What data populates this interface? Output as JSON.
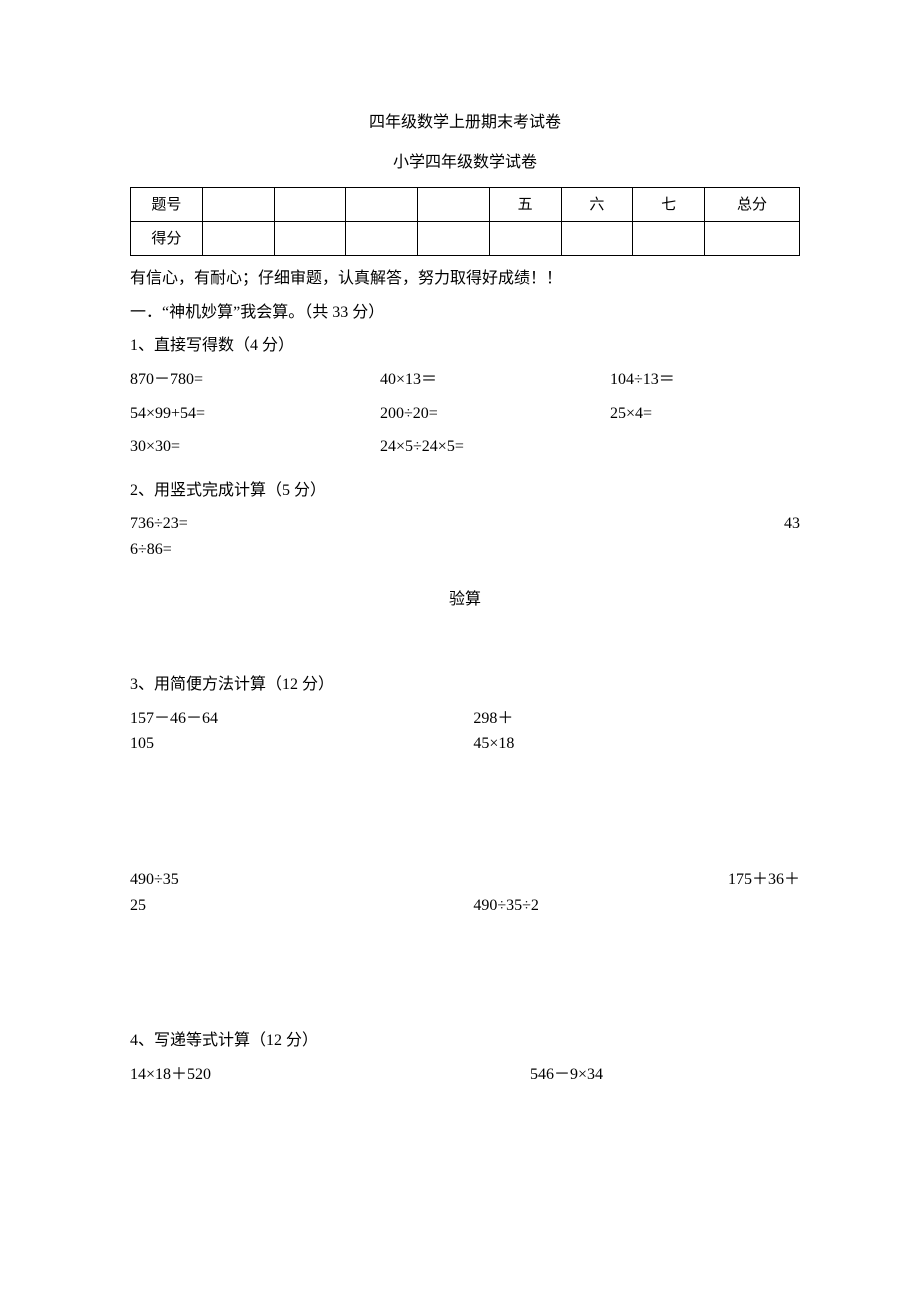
{
  "title_main": "四年级数学上册期末考试卷",
  "title_sub": "小学四年级数学试卷",
  "score_table": {
    "row1_label": "题号",
    "row2_label": "得分",
    "cols": [
      "",
      "",
      "",
      "",
      "五",
      "六",
      "七",
      "总分"
    ]
  },
  "encourage": "有信心，有耐心；仔细审题，认真解答，努力取得好成绩！！",
  "section1": "一．“神机妙算”我会算。（共 33 分）",
  "q1_title": "1、直接写得数（4 分）",
  "q1": {
    "r1a": "870－780=",
    "r1b": "40×13＝",
    "r1c": "104÷13＝",
    "r2a": "54×99+54=",
    "r2b": "200÷20=",
    "r2c": "25×4=",
    "r3a": "30×30=",
    "r3b": "24×5÷24×5="
  },
  "q2_title": "2、用竖式完成计算（5 分）",
  "q2": {
    "a": "736÷23=",
    "b_right": "43",
    "b_cont": "6÷86="
  },
  "yanshuan": "验算",
  "q3_title": "3、用简便方法计算（12 分）",
  "q3": {
    "r1a": "157－46－64",
    "r1b": "298＋",
    "r1a2": "105",
    "r1b2": "45×18",
    "r2a": "490÷35",
    "r2c": "175＋36＋",
    "r2a2": "25",
    "r2b2": "490÷35÷2"
  },
  "q4_title": "4、写递等式计算（12 分）",
  "q4": {
    "a": "14×18＋520",
    "b": "546－9×34"
  }
}
